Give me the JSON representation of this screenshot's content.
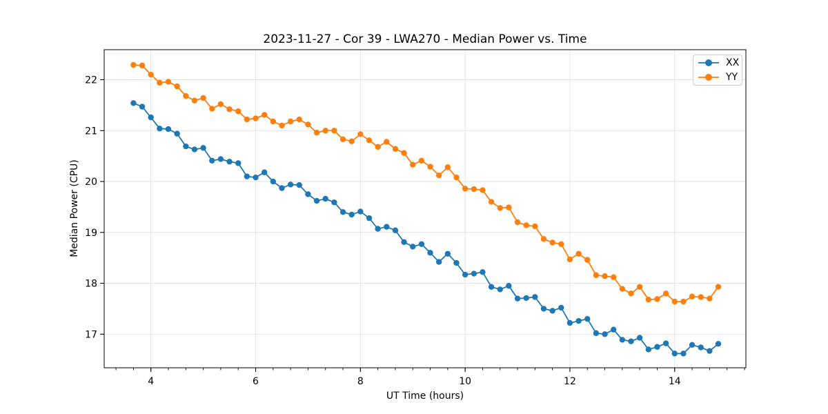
{
  "figure": {
    "background": "#ffffff",
    "spine_color": "#000000",
    "grid_color": "#e2e2e2",
    "text_color": "#000000"
  },
  "chart_data": {
    "type": "line",
    "title": "2023-11-27 - Cor 39 - LWA270 - Median Power vs. Time",
    "xlabel": "UT Time (hours)",
    "ylabel": "Median Power (CPU)",
    "xlim": [
      3.108,
      15.36
    ],
    "ylim": [
      16.34,
      22.59
    ],
    "x_major_ticks": [
      4,
      6,
      8,
      10,
      12,
      14
    ],
    "y_major_ticks": [
      17,
      18,
      19,
      20,
      21,
      22
    ],
    "x_minor_step": 0.33333,
    "grid": "major-only",
    "legend_position": "upper-right",
    "marker": "circle",
    "x": [
      3.667,
      3.833,
      4.0,
      4.167,
      4.333,
      4.5,
      4.667,
      4.833,
      5.0,
      5.167,
      5.333,
      5.5,
      5.667,
      5.833,
      6.0,
      6.167,
      6.333,
      6.5,
      6.667,
      6.833,
      7.0,
      7.167,
      7.333,
      7.5,
      7.667,
      7.833,
      8.0,
      8.167,
      8.333,
      8.5,
      8.667,
      8.833,
      9.0,
      9.167,
      9.333,
      9.5,
      9.667,
      9.833,
      10.0,
      10.167,
      10.333,
      10.5,
      10.667,
      10.833,
      11.0,
      11.167,
      11.333,
      11.5,
      11.667,
      11.833,
      12.0,
      12.167,
      12.333,
      12.5,
      12.667,
      12.833,
      13.0,
      13.167,
      13.333,
      13.5,
      13.667,
      13.833,
      14.0,
      14.167,
      14.333,
      14.5,
      14.667,
      14.833
    ],
    "series": [
      {
        "name": "XX",
        "color": "#1f77b4",
        "values": [
          21.54,
          21.47,
          21.26,
          21.04,
          21.03,
          20.94,
          20.69,
          20.63,
          20.66,
          20.41,
          20.44,
          20.39,
          20.36,
          20.1,
          20.08,
          20.18,
          20.0,
          19.87,
          19.94,
          19.93,
          19.75,
          19.62,
          19.66,
          19.59,
          19.4,
          19.35,
          19.41,
          19.28,
          19.07,
          19.11,
          19.04,
          18.81,
          18.72,
          18.77,
          18.6,
          18.42,
          18.58,
          18.4,
          18.17,
          18.19,
          18.22,
          17.93,
          17.88,
          17.95,
          17.7,
          17.71,
          17.73,
          17.5,
          17.46,
          17.52,
          17.22,
          17.26,
          17.3,
          17.02,
          17.0,
          17.09,
          16.89,
          16.86,
          16.93,
          16.7,
          16.75,
          16.82,
          16.62,
          16.62,
          16.79,
          16.74,
          16.67,
          16.81
        ]
      },
      {
        "name": "YY",
        "color": "#ff7f0e",
        "values": [
          22.29,
          22.28,
          22.1,
          21.94,
          21.96,
          21.87,
          21.68,
          21.59,
          21.64,
          21.43,
          21.52,
          21.42,
          21.38,
          21.22,
          21.24,
          21.31,
          21.18,
          21.1,
          21.18,
          21.22,
          21.12,
          20.96,
          21.0,
          21.0,
          20.83,
          20.79,
          20.93,
          20.81,
          20.68,
          20.78,
          20.64,
          20.56,
          20.33,
          20.41,
          20.29,
          20.12,
          20.28,
          20.08,
          19.86,
          19.85,
          19.83,
          19.6,
          19.48,
          19.49,
          19.2,
          19.14,
          19.12,
          18.87,
          18.8,
          18.77,
          18.47,
          18.58,
          18.46,
          18.16,
          18.14,
          18.12,
          17.89,
          17.8,
          17.93,
          17.68,
          17.69,
          17.8,
          17.64,
          17.64,
          17.74,
          17.73,
          17.7,
          17.93
        ]
      }
    ]
  }
}
